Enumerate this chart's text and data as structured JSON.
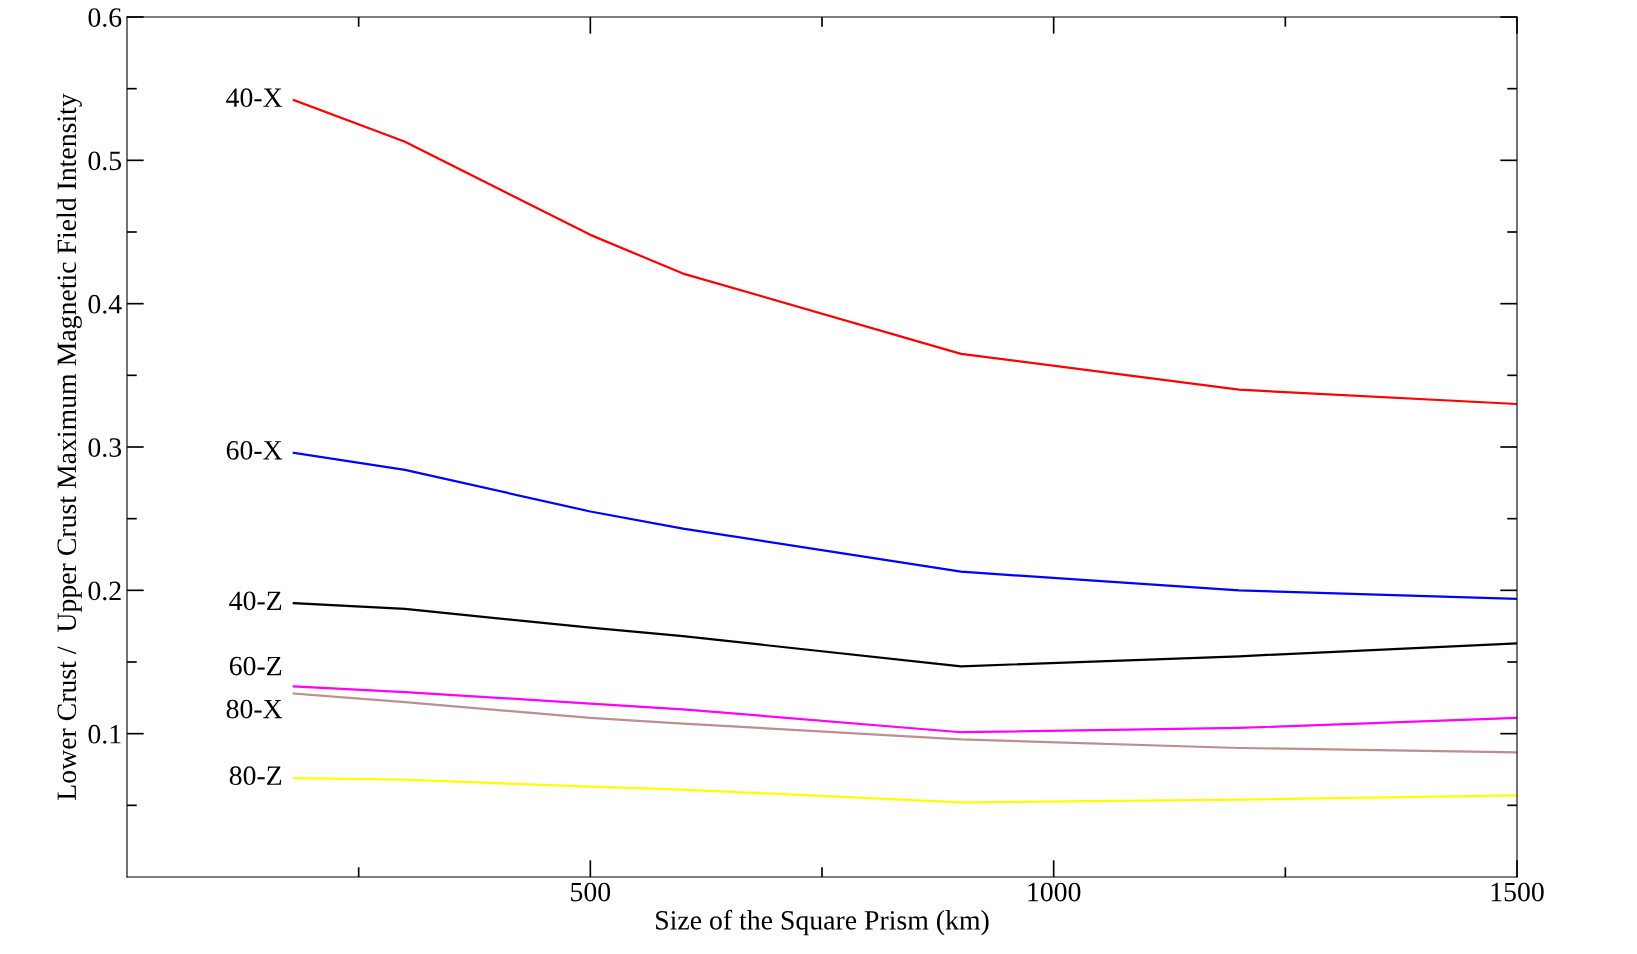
{
  "chart_data": {
    "type": "line",
    "xlabel": "Size of the Square Prism (km)",
    "ylabel": "Lower Crust /  Upper Crust Maximum Magnetic Field Intensity",
    "x": [
      180,
      300,
      500,
      600,
      900,
      1200,
      1500
    ],
    "series": [
      {
        "name": "40-X",
        "color": "#ff0000",
        "values": [
          0.542,
          0.513,
          0.448,
          0.421,
          0.365,
          0.34,
          0.33
        ]
      },
      {
        "name": "60-X",
        "color": "#0000ff",
        "values": [
          0.296,
          0.284,
          0.255,
          0.243,
          0.213,
          0.2,
          0.194
        ]
      },
      {
        "name": "40-Z",
        "color": "#000000",
        "values": [
          0.191,
          0.187,
          0.174,
          0.168,
          0.147,
          0.154,
          0.163
        ]
      },
      {
        "name": "60-Z",
        "color": "#ff00ff",
        "values": [
          0.133,
          0.129,
          0.121,
          0.117,
          0.101,
          0.104,
          0.111
        ]
      },
      {
        "name": "80-X",
        "color": "#bc8f8f",
        "values": [
          0.128,
          0.122,
          0.111,
          0.107,
          0.096,
          0.09,
          0.087
        ]
      },
      {
        "name": "80-Z",
        "color": "#ffff00",
        "values": [
          0.069,
          0.068,
          0.063,
          0.061,
          0.052,
          0.054,
          0.057
        ]
      }
    ],
    "xlim": [
      0,
      1500
    ],
    "xticks": [
      500,
      1000,
      1500
    ],
    "ylim": [
      0,
      0.6
    ],
    "yticks": [
      0.1,
      0.2,
      0.3,
      0.4,
      0.5,
      0.6
    ],
    "grid": false,
    "legend": false,
    "marker": "none",
    "line_style": "solid"
  }
}
